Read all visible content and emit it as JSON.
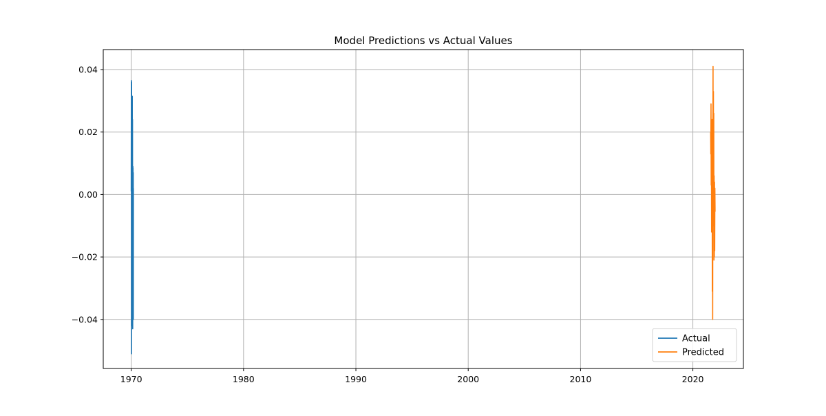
{
  "chart_data": {
    "type": "line",
    "title": "Model Predictions vs Actual Values",
    "xlabel": "",
    "ylabel": "",
    "x_scale": "date",
    "xlim": [
      "1967-07-06",
      "2024-07-01"
    ],
    "ylim": [
      -0.0557,
      0.0464
    ],
    "x_ticks": [
      {
        "value": "1970-01-01",
        "label": "1970"
      },
      {
        "value": "1980-01-01",
        "label": "1980"
      },
      {
        "value": "1990-01-01",
        "label": "1990"
      },
      {
        "value": "2000-01-01",
        "label": "2000"
      },
      {
        "value": "2010-01-01",
        "label": "2010"
      },
      {
        "value": "2020-01-01",
        "label": "2020"
      }
    ],
    "y_ticks": [
      {
        "value": 0.04,
        "label": "0.04"
      },
      {
        "value": 0.02,
        "label": "0.02"
      },
      {
        "value": 0.0,
        "label": "0.00"
      },
      {
        "value": -0.02,
        "label": "−0.02"
      },
      {
        "value": -0.04,
        "label": "−0.04"
      }
    ],
    "grid": true,
    "legend_position": "lower-right",
    "series": [
      {
        "name": "Actual",
        "color": "#1f77b4",
        "points": [
          [
            "1970-01-01",
            0.001
          ],
          [
            "1970-01-03",
            0.018
          ],
          [
            "1970-01-05",
            0.032
          ],
          [
            "1970-01-07",
            0.0365
          ],
          [
            "1970-01-09",
            -0.051
          ],
          [
            "1970-01-11",
            0.025
          ],
          [
            "1970-01-13",
            0.036
          ],
          [
            "1970-01-15",
            -0.028
          ],
          [
            "1970-01-17",
            0.012
          ],
          [
            "1970-01-19",
            -0.018
          ],
          [
            "1970-01-21",
            0.022
          ],
          [
            "1970-01-23",
            -0.042
          ],
          [
            "1970-01-25",
            0.009
          ],
          [
            "1970-01-27",
            0.03
          ],
          [
            "1970-01-29",
            -0.035
          ],
          [
            "1970-01-31",
            0.004
          ],
          [
            "1970-02-02",
            -0.02
          ],
          [
            "1970-02-04",
            0.0315
          ],
          [
            "1970-02-06",
            -0.01
          ],
          [
            "1970-02-08",
            0.019
          ],
          [
            "1970-02-10",
            -0.025
          ],
          [
            "1970-02-12",
            0.024
          ],
          [
            "1970-02-14",
            -0.03
          ],
          [
            "1970-02-16",
            0.008
          ],
          [
            "1970-02-18",
            -0.043
          ],
          [
            "1970-02-20",
            0.005
          ],
          [
            "1970-02-22",
            -0.012
          ],
          [
            "1970-02-24",
            0.009
          ],
          [
            "1970-02-26",
            -0.022
          ],
          [
            "1970-02-28",
            0.0085
          ],
          [
            "1970-03-02",
            -0.015
          ],
          [
            "1970-03-04",
            0.006
          ],
          [
            "1970-03-06",
            -0.036
          ],
          [
            "1970-03-08",
            0.007
          ],
          [
            "1970-03-10",
            -0.04
          ],
          [
            "1970-03-12",
            0.002
          ]
        ]
      },
      {
        "name": "Predicted",
        "color": "#ff7f0e",
        "points": [
          [
            "2021-08-01",
            0.02
          ],
          [
            "2021-08-07",
            0.013
          ],
          [
            "2021-08-13",
            0.029
          ],
          [
            "2021-08-19",
            0.003
          ],
          [
            "2021-08-25",
            0.021
          ],
          [
            "2021-08-31",
            -0.012
          ],
          [
            "2021-09-06",
            0.018
          ],
          [
            "2021-09-12",
            0.008
          ],
          [
            "2021-09-18",
            0.024
          ],
          [
            "2021-09-24",
            -0.031
          ],
          [
            "2021-09-30",
            0.015
          ],
          [
            "2021-10-06",
            -0.04
          ],
          [
            "2021-10-12",
            0.012
          ],
          [
            "2021-10-18",
            0.041
          ],
          [
            "2021-10-24",
            -0.01
          ],
          [
            "2021-10-30",
            0.033
          ],
          [
            "2021-11-05",
            0.003
          ],
          [
            "2021-11-11",
            0.026
          ],
          [
            "2021-11-17",
            -0.021
          ],
          [
            "2021-11-23",
            0.006
          ],
          [
            "2021-11-29",
            -0.02
          ],
          [
            "2021-12-05",
            0.004
          ],
          [
            "2021-12-11",
            -0.018
          ],
          [
            "2021-12-17",
            0.002
          ],
          [
            "2021-12-23",
            -0.0055
          ]
        ]
      }
    ]
  }
}
